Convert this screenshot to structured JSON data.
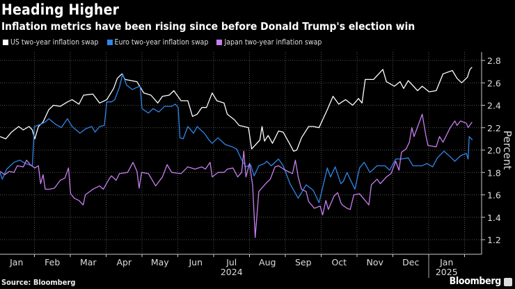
{
  "title": "Heading Higher",
  "subtitle": "Inflation metrics have been rising since before Donald Trump's election win",
  "source": "Source: Bloomberg",
  "brand": "Bloomberg",
  "chart_data": {
    "type": "line",
    "title": "Heading Higher",
    "subtitle": "Inflation metrics have been rising since before Donald Trump's election win",
    "xlabel": "",
    "ylabel": "Percent",
    "x_units": "months since Jan 1 2024",
    "xlim": [
      0,
      13.4
    ],
    "ylim": [
      1.15,
      2.85
    ],
    "yticks": [
      1.2,
      1.4,
      1.6,
      1.8,
      2.0,
      2.2,
      2.4,
      2.6,
      2.8
    ],
    "ytick_labels": [
      "1.2",
      "1.4",
      "1.6",
      "1.8",
      "2.0",
      "2.2",
      "2.4",
      "2.6",
      "2.8"
    ],
    "xtick_labels": [
      "Jan",
      "Feb",
      "Mar",
      "Apr",
      "May",
      "Jun",
      "Jul",
      "Aug",
      "Sep",
      "Oct",
      "Nov",
      "Dec",
      "Jan"
    ],
    "year_labels": [
      {
        "label": "2024",
        "at": 6.5
      },
      {
        "label": "2025",
        "at": 12.5
      }
    ],
    "year_divider": 12,
    "grid": true,
    "legend_position": "top-left",
    "series": [
      {
        "name": "US two-year inflation swap",
        "color": "#ffffff",
        "points": [
          [
            0.04,
            2.12
          ],
          [
            0.2,
            2.1
          ],
          [
            0.36,
            2.16
          ],
          [
            0.56,
            2.21
          ],
          [
            0.69,
            2.18
          ],
          [
            0.85,
            2.21
          ],
          [
            0.94,
            2.18
          ],
          [
            1.01,
            2.1
          ],
          [
            1.11,
            2.21
          ],
          [
            1.24,
            2.25
          ],
          [
            1.4,
            2.36
          ],
          [
            1.53,
            2.4
          ],
          [
            1.72,
            2.39
          ],
          [
            1.92,
            2.43
          ],
          [
            2.05,
            2.45
          ],
          [
            2.24,
            2.41
          ],
          [
            2.37,
            2.49
          ],
          [
            2.63,
            2.5
          ],
          [
            2.82,
            2.42
          ],
          [
            3.02,
            2.45
          ],
          [
            3.21,
            2.55
          ],
          [
            3.31,
            2.64
          ],
          [
            3.44,
            2.68
          ],
          [
            3.53,
            2.63
          ],
          [
            3.86,
            2.61
          ],
          [
            4.05,
            2.51
          ],
          [
            4.25,
            2.49
          ],
          [
            4.44,
            2.42
          ],
          [
            4.57,
            2.48
          ],
          [
            4.76,
            2.49
          ],
          [
            4.89,
            2.53
          ],
          [
            5.09,
            2.44
          ],
          [
            5.28,
            2.44
          ],
          [
            5.41,
            2.3
          ],
          [
            5.54,
            2.32
          ],
          [
            5.67,
            2.38
          ],
          [
            5.8,
            2.38
          ],
          [
            5.96,
            2.51
          ],
          [
            6.09,
            2.44
          ],
          [
            6.29,
            2.42
          ],
          [
            6.38,
            2.32
          ],
          [
            6.58,
            2.27
          ],
          [
            6.71,
            2.22
          ],
          [
            6.97,
            2.2
          ],
          [
            7.06,
            2.01
          ],
          [
            7.29,
            2.09
          ],
          [
            7.35,
            2.21
          ],
          [
            7.42,
            2.08
          ],
          [
            7.52,
            2.13
          ],
          [
            7.64,
            2.06
          ],
          [
            7.81,
            2.17
          ],
          [
            7.94,
            2.16
          ],
          [
            8.13,
            2.05
          ],
          [
            8.23,
            1.99
          ],
          [
            8.32,
            2.0
          ],
          [
            8.45,
            2.11
          ],
          [
            8.65,
            2.21
          ],
          [
            8.78,
            2.21
          ],
          [
            8.94,
            2.2
          ],
          [
            9.17,
            2.36
          ],
          [
            9.33,
            2.48
          ],
          [
            9.49,
            2.41
          ],
          [
            9.68,
            2.45
          ],
          [
            9.88,
            2.4
          ],
          [
            10.04,
            2.46
          ],
          [
            10.14,
            2.42
          ],
          [
            10.23,
            2.63
          ],
          [
            10.46,
            2.63
          ],
          [
            10.72,
            2.72
          ],
          [
            10.82,
            2.61
          ],
          [
            11.04,
            2.57
          ],
          [
            11.2,
            2.61
          ],
          [
            11.3,
            2.55
          ],
          [
            11.43,
            2.62
          ],
          [
            11.69,
            2.53
          ],
          [
            11.82,
            2.57
          ],
          [
            12.01,
            2.52
          ],
          [
            12.21,
            2.53
          ],
          [
            12.4,
            2.68
          ],
          [
            12.66,
            2.71
          ],
          [
            12.79,
            2.64
          ],
          [
            12.92,
            2.6
          ],
          [
            13.08,
            2.65
          ],
          [
            13.15,
            2.72
          ],
          [
            13.21,
            2.74
          ]
        ]
      },
      {
        "name": "Euro two-year inflation swap",
        "color": "#2f86e8",
        "points": [
          [
            0.04,
            1.8
          ],
          [
            0.1,
            1.74
          ],
          [
            0.23,
            1.83
          ],
          [
            0.43,
            1.89
          ],
          [
            0.59,
            1.91
          ],
          [
            0.75,
            1.88
          ],
          [
            0.94,
            1.86
          ],
          [
            1.0,
            2.21
          ],
          [
            1.17,
            2.23
          ],
          [
            1.3,
            2.25
          ],
          [
            1.4,
            2.28
          ],
          [
            1.59,
            2.23
          ],
          [
            1.75,
            2.2
          ],
          [
            1.92,
            2.28
          ],
          [
            2.05,
            2.21
          ],
          [
            2.27,
            2.15
          ],
          [
            2.43,
            2.19
          ],
          [
            2.6,
            2.21
          ],
          [
            2.69,
            2.16
          ],
          [
            2.82,
            2.21
          ],
          [
            2.95,
            2.22
          ],
          [
            3.02,
            2.43
          ],
          [
            3.15,
            2.43
          ],
          [
            3.24,
            2.45
          ],
          [
            3.37,
            2.56
          ],
          [
            3.46,
            2.68
          ],
          [
            3.57,
            2.58
          ],
          [
            3.73,
            2.54
          ],
          [
            3.86,
            2.56
          ],
          [
            3.95,
            2.57
          ],
          [
            4.0,
            2.37
          ],
          [
            4.18,
            2.33
          ],
          [
            4.31,
            2.37
          ],
          [
            4.47,
            2.34
          ],
          [
            4.63,
            2.39
          ],
          [
            4.83,
            2.39
          ],
          [
            4.93,
            2.41
          ],
          [
            5.01,
            2.38
          ],
          [
            5.06,
            2.11
          ],
          [
            5.15,
            2.1
          ],
          [
            5.28,
            2.21
          ],
          [
            5.44,
            2.15
          ],
          [
            5.54,
            2.21
          ],
          [
            5.74,
            2.15
          ],
          [
            5.87,
            2.09
          ],
          [
            5.96,
            2.06
          ],
          [
            6.12,
            2.11
          ],
          [
            6.32,
            2.05
          ],
          [
            6.51,
            2.03
          ],
          [
            6.64,
            2.01
          ],
          [
            6.77,
            1.92
          ],
          [
            6.9,
            1.85
          ],
          [
            7.03,
            1.87
          ],
          [
            7.13,
            1.77
          ],
          [
            7.26,
            1.86
          ],
          [
            7.42,
            1.88
          ],
          [
            7.48,
            1.9
          ],
          [
            7.61,
            1.86
          ],
          [
            7.81,
            1.92
          ],
          [
            7.94,
            1.86
          ],
          [
            8.13,
            1.7
          ],
          [
            8.36,
            1.57
          ],
          [
            8.58,
            1.69
          ],
          [
            8.78,
            1.64
          ],
          [
            8.94,
            1.53
          ],
          [
            9.17,
            1.84
          ],
          [
            9.26,
            1.76
          ],
          [
            9.39,
            1.85
          ],
          [
            9.55,
            1.7
          ],
          [
            9.62,
            1.72
          ],
          [
            9.72,
            1.8
          ],
          [
            9.94,
            1.65
          ],
          [
            10.07,
            1.84
          ],
          [
            10.2,
            1.89
          ],
          [
            10.36,
            1.8
          ],
          [
            10.56,
            1.86
          ],
          [
            10.78,
            1.86
          ],
          [
            10.91,
            1.82
          ],
          [
            11.08,
            1.92
          ],
          [
            11.24,
            1.92
          ],
          [
            11.43,
            1.93
          ],
          [
            11.56,
            1.86
          ],
          [
            11.82,
            1.86
          ],
          [
            11.95,
            1.88
          ],
          [
            12.11,
            1.85
          ],
          [
            12.24,
            1.93
          ],
          [
            12.43,
            1.99
          ],
          [
            12.6,
            1.94
          ],
          [
            12.73,
            1.9
          ],
          [
            12.89,
            1.95
          ],
          [
            13.05,
            1.97
          ],
          [
            13.1,
            1.92
          ],
          [
            13.13,
            2.12
          ],
          [
            13.22,
            2.09
          ]
        ]
      },
      {
        "name": "Japan two-year inflation swap",
        "color": "#c77ff0",
        "points": [
          [
            0.04,
            1.81
          ],
          [
            0.17,
            1.78
          ],
          [
            0.3,
            1.81
          ],
          [
            0.43,
            1.8
          ],
          [
            0.52,
            1.86
          ],
          [
            0.69,
            1.85
          ],
          [
            0.78,
            1.91
          ],
          [
            0.88,
            1.87
          ],
          [
            1.01,
            1.84
          ],
          [
            1.11,
            1.86
          ],
          [
            1.17,
            1.7
          ],
          [
            1.24,
            1.78
          ],
          [
            1.3,
            1.65
          ],
          [
            1.43,
            1.65
          ],
          [
            1.56,
            1.66
          ],
          [
            1.72,
            1.73
          ],
          [
            1.85,
            1.75
          ],
          [
            1.95,
            1.84
          ],
          [
            2.01,
            1.61
          ],
          [
            2.11,
            1.57
          ],
          [
            2.24,
            1.55
          ],
          [
            2.36,
            1.51
          ],
          [
            2.42,
            1.6
          ],
          [
            2.63,
            1.65
          ],
          [
            2.82,
            1.68
          ],
          [
            2.92,
            1.65
          ],
          [
            3.08,
            1.74
          ],
          [
            3.15,
            1.77
          ],
          [
            3.28,
            1.73
          ],
          [
            3.37,
            1.79
          ],
          [
            3.6,
            1.8
          ],
          [
            3.75,
            1.89
          ],
          [
            3.86,
            1.81
          ],
          [
            3.92,
            1.66
          ],
          [
            3.99,
            1.8
          ],
          [
            4.18,
            1.79
          ],
          [
            4.38,
            1.68
          ],
          [
            4.57,
            1.76
          ],
          [
            4.7,
            1.87
          ],
          [
            4.83,
            1.8
          ],
          [
            5.09,
            1.79
          ],
          [
            5.28,
            1.85
          ],
          [
            5.48,
            1.83
          ],
          [
            5.67,
            1.85
          ],
          [
            5.77,
            1.83
          ],
          [
            5.9,
            1.89
          ],
          [
            5.96,
            1.76
          ],
          [
            6.12,
            1.8
          ],
          [
            6.29,
            1.8
          ],
          [
            6.38,
            1.83
          ],
          [
            6.54,
            1.84
          ],
          [
            6.67,
            1.76
          ],
          [
            6.78,
            1.8
          ],
          [
            6.84,
            1.99
          ],
          [
            6.9,
            1.76
          ],
          [
            7.0,
            1.88
          ],
          [
            7.09,
            1.68
          ],
          [
            7.16,
            1.22
          ],
          [
            7.26,
            1.63
          ],
          [
            7.45,
            1.7
          ],
          [
            7.58,
            1.74
          ],
          [
            7.71,
            1.85
          ],
          [
            7.81,
            1.86
          ],
          [
            8.0,
            1.82
          ],
          [
            8.2,
            1.79
          ],
          [
            8.28,
            1.91
          ],
          [
            8.36,
            1.76
          ],
          [
            8.45,
            1.65
          ],
          [
            8.58,
            1.63
          ],
          [
            8.65,
            1.54
          ],
          [
            8.81,
            1.48
          ],
          [
            8.97,
            1.5
          ],
          [
            9.04,
            1.42
          ],
          [
            9.13,
            1.55
          ],
          [
            9.2,
            1.47
          ],
          [
            9.36,
            1.59
          ],
          [
            9.46,
            1.62
          ],
          [
            9.55,
            1.53
          ],
          [
            9.59,
            1.51
          ],
          [
            9.72,
            1.48
          ],
          [
            9.81,
            1.47
          ],
          [
            9.91,
            1.6
          ],
          [
            10.07,
            1.61
          ],
          [
            10.2,
            1.56
          ],
          [
            10.33,
            1.51
          ],
          [
            10.4,
            1.69
          ],
          [
            10.56,
            1.74
          ],
          [
            10.65,
            1.7
          ],
          [
            10.82,
            1.76
          ],
          [
            10.95,
            1.79
          ],
          [
            11.08,
            1.9
          ],
          [
            11.17,
            1.82
          ],
          [
            11.24,
            1.98
          ],
          [
            11.37,
            2.01
          ],
          [
            11.46,
            2.07
          ],
          [
            11.53,
            2.2
          ],
          [
            11.59,
            2.12
          ],
          [
            11.82,
            2.32
          ],
          [
            11.92,
            2.13
          ],
          [
            11.98,
            2.04
          ],
          [
            12.21,
            2.03
          ],
          [
            12.3,
            2.12
          ],
          [
            12.4,
            2.07
          ],
          [
            12.6,
            2.2
          ],
          [
            12.73,
            2.26
          ],
          [
            12.79,
            2.22
          ],
          [
            12.89,
            2.26
          ],
          [
            13.05,
            2.24
          ],
          [
            13.1,
            2.2
          ],
          [
            13.21,
            2.25
          ]
        ]
      }
    ]
  }
}
